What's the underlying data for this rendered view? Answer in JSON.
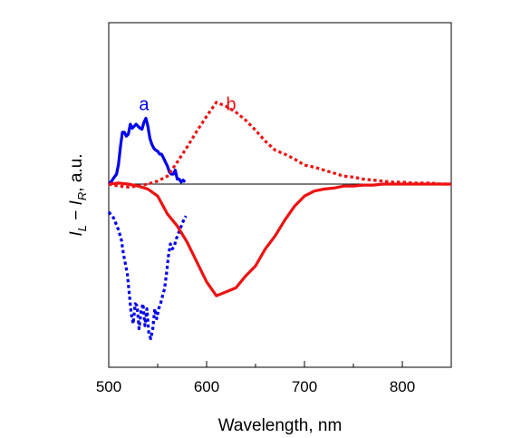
{
  "chart_data": {
    "type": "line",
    "title": "",
    "xlabel": "Wavelength, nm",
    "ylabel_parts": {
      "i_left": "I",
      "sub_left": "L",
      "minus": " − ",
      "i_right": "I",
      "sub_right": "R",
      "unit": ", a.u."
    },
    "xlim": [
      500,
      850
    ],
    "ylim": [
      -1.0,
      1.0
    ],
    "x_ticks": [
      500,
      600,
      700,
      800
    ],
    "x_tick_labels": [
      "500",
      "600",
      "700",
      "800"
    ],
    "x_minor_ticks": [
      550,
      650,
      750,
      850
    ],
    "y_ticks_visible": false,
    "grid": false,
    "legend": "none",
    "baseline": 0,
    "colors": {
      "a": "#0000ee",
      "b": "#ee1111",
      "baseline": "#000000"
    },
    "labels": [
      {
        "text": "a",
        "color": "#0000ee",
        "x": 536,
        "y": 0.74
      },
      {
        "text": "b",
        "color": "#ee1111",
        "x": 625,
        "y": 0.74
      }
    ],
    "series": [
      {
        "curve": "a",
        "style": "solid",
        "color": "#0000ee",
        "x": [
          500,
          503,
          505,
          508,
          510,
          512,
          514,
          516,
          518,
          520,
          522,
          524,
          526,
          528,
          530,
          532,
          534,
          536,
          538,
          540,
          542,
          544,
          546,
          548,
          550,
          552,
          554,
          556,
          558,
          560,
          562,
          564,
          566,
          568,
          570,
          572,
          574,
          576,
          578
        ],
        "y": [
          0.0,
          0.03,
          0.06,
          0.1,
          0.2,
          0.38,
          0.52,
          0.52,
          0.48,
          0.5,
          0.6,
          0.56,
          0.58,
          0.6,
          0.58,
          0.56,
          0.55,
          0.62,
          0.66,
          0.58,
          0.46,
          0.4,
          0.36,
          0.34,
          0.33,
          0.3,
          0.3,
          0.26,
          0.22,
          0.18,
          0.12,
          0.1,
          0.1,
          0.14,
          0.05,
          0.05,
          0.02,
          0.04,
          0.02
        ]
      },
      {
        "curve": "a",
        "style": "dotted",
        "color": "#0000ee",
        "x": [
          500,
          505,
          510,
          513,
          515,
          517,
          519,
          521,
          523,
          525,
          527,
          529,
          531,
          533,
          535,
          537,
          539,
          541,
          543,
          545,
          547,
          549,
          551,
          553,
          555,
          557,
          559,
          561,
          563,
          565,
          567,
          569,
          571,
          573,
          575,
          577,
          579
        ],
        "y": [
          -0.28,
          -0.34,
          -0.46,
          -0.56,
          -0.7,
          -0.8,
          -0.9,
          -1.1,
          -1.3,
          -1.4,
          -1.2,
          -1.22,
          -1.45,
          -1.28,
          -1.2,
          -1.42,
          -1.25,
          -1.5,
          -1.55,
          -1.45,
          -1.25,
          -1.35,
          -1.25,
          -1.2,
          -1.12,
          -1.05,
          -0.9,
          -0.72,
          -0.6,
          -0.65,
          -0.62,
          -0.55,
          -0.5,
          -0.45,
          -0.4,
          -0.35,
          -0.32
        ]
      },
      {
        "curve": "b",
        "style": "dotted",
        "color": "#ee1111",
        "x": [
          500,
          510,
          520,
          530,
          540,
          550,
          560,
          570,
          580,
          590,
          600,
          610,
          620,
          630,
          640,
          650,
          660,
          670,
          680,
          690,
          700,
          710,
          720,
          730,
          740,
          750,
          760,
          770,
          780,
          790,
          800,
          810,
          820,
          830,
          840,
          850
        ],
        "y": [
          0.0,
          -0.02,
          -0.03,
          -0.02,
          0.0,
          0.03,
          0.08,
          0.22,
          0.37,
          0.53,
          0.68,
          0.82,
          0.78,
          0.72,
          0.64,
          0.54,
          0.43,
          0.34,
          0.3,
          0.25,
          0.19,
          0.17,
          0.14,
          0.11,
          0.08,
          0.07,
          0.05,
          0.04,
          0.03,
          0.02,
          0.02,
          0.01,
          0.01,
          0.01,
          0.0,
          0.0
        ]
      },
      {
        "curve": "b",
        "style": "solid",
        "color": "#ee1111",
        "x": [
          500,
          510,
          520,
          530,
          540,
          550,
          560,
          570,
          580,
          590,
          600,
          610,
          620,
          630,
          640,
          650,
          660,
          670,
          680,
          690,
          700,
          710,
          720,
          730,
          740,
          750,
          760,
          770,
          780,
          790,
          800,
          810,
          820,
          830,
          840,
          850
        ],
        "y": [
          0.0,
          0.01,
          0.0,
          -0.02,
          -0.05,
          -0.12,
          -0.3,
          -0.42,
          -0.58,
          -0.78,
          -0.98,
          -1.12,
          -1.08,
          -1.04,
          -0.92,
          -0.82,
          -0.65,
          -0.52,
          -0.36,
          -0.22,
          -0.12,
          -0.07,
          -0.05,
          -0.04,
          -0.02,
          -0.02,
          -0.01,
          -0.01,
          0.0,
          0.0,
          0.0,
          0.0,
          0.0,
          0.0,
          0.0,
          0.0
        ]
      }
    ]
  }
}
